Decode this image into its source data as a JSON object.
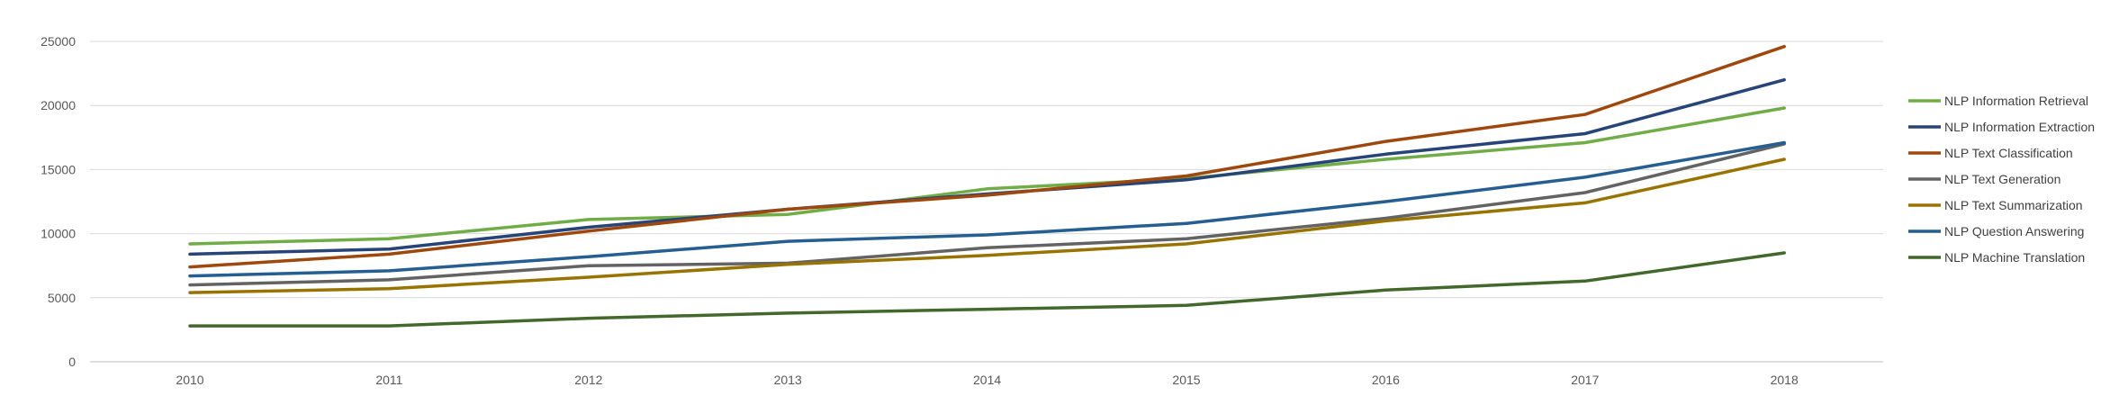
{
  "chart_data": {
    "type": "line",
    "title": "",
    "xlabel": "",
    "ylabel": "",
    "x": [
      "2010",
      "2011",
      "2012",
      "2013",
      "2014",
      "2015",
      "2016",
      "2017",
      "2018"
    ],
    "ylim": [
      0,
      25000
    ],
    "yticks": [
      0,
      5000,
      10000,
      15000,
      20000,
      25000
    ],
    "grid": true,
    "legend_position": "right",
    "series": [
      {
        "name": "NLP Information Retrieval",
        "color": "#70AD47",
        "values": [
          9200,
          9600,
          11100,
          11500,
          13500,
          14300,
          15800,
          17100,
          19800
        ]
      },
      {
        "name": "NLP Information Extraction",
        "color": "#264478",
        "values": [
          8400,
          8800,
          10500,
          11900,
          13100,
          14200,
          16200,
          17800,
          22000
        ]
      },
      {
        "name": "NLP Text Classification",
        "color": "#9E480E",
        "values": [
          7400,
          8400,
          10200,
          11900,
          13000,
          14500,
          17200,
          19300,
          24600
        ]
      },
      {
        "name": "NLP Text Generation",
        "color": "#636363",
        "values": [
          6000,
          6400,
          7500,
          7700,
          8900,
          9600,
          11200,
          13200,
          17000
        ]
      },
      {
        "name": "NLP Text Summarization",
        "color": "#997300",
        "values": [
          5400,
          5700,
          6600,
          7600,
          8300,
          9200,
          11000,
          12400,
          15800
        ]
      },
      {
        "name": "NLP Question Answering",
        "color": "#255E91",
        "values": [
          6700,
          7100,
          8200,
          9400,
          9900,
          10800,
          12500,
          14400,
          17100
        ]
      },
      {
        "name": "NLP Machine Translation",
        "color": "#43682B",
        "values": [
          2800,
          2800,
          3400,
          3800,
          4100,
          4400,
          5600,
          6300,
          8500
        ]
      }
    ]
  }
}
